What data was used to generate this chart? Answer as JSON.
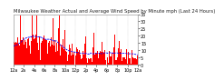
{
  "title": "Milwaukee Weather Actual and Average Wind Speed by Minute mph (Last 24 Hours)",
  "ylim": [
    0,
    35
  ],
  "xlim": [
    0,
    1440
  ],
  "background_color": "#ffffff",
  "bar_color": "#ff0000",
  "line_color": "#0000ff",
  "grid_color": "#aaaaaa",
  "title_fontsize": 3.8,
  "tick_fontsize": 3.5,
  "num_points": 1440,
  "seed": 42,
  "yticks": [
    0,
    5,
    10,
    15,
    20,
    25,
    30,
    35
  ],
  "x_tick_step": 120
}
